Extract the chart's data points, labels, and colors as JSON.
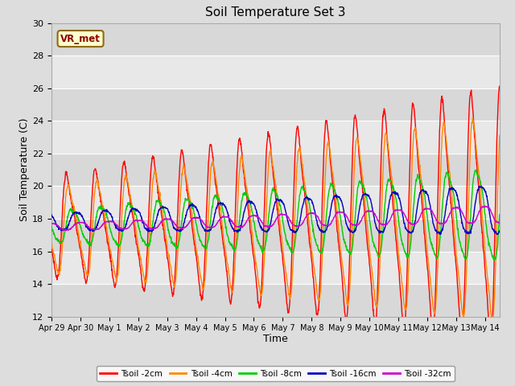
{
  "title": "Soil Temperature Set 3",
  "xlabel": "Time",
  "ylabel": "Soil Temperature (C)",
  "ylim": [
    12,
    30
  ],
  "yticks": [
    12,
    14,
    16,
    18,
    20,
    22,
    24,
    26,
    28,
    30
  ],
  "bg_color": "#dddddd",
  "plot_bg": "#e8e8e8",
  "stripe_light": "#e8e8e8",
  "stripe_dark": "#d0d0d0",
  "annotation_text": "VR_met",
  "annotation_bg": "#ffffcc",
  "annotation_border": "#8b6914",
  "series_colors": {
    "Tsoil -2cm": "#ff0000",
    "Tsoil -4cm": "#ff8800",
    "Tsoil -8cm": "#00cc00",
    "Tsoil -16cm": "#0000bb",
    "Tsoil -32cm": "#cc00cc"
  },
  "legend_labels": [
    "Tsoil -2cm",
    "Tsoil -4cm",
    "Tsoil -8cm",
    "Tsoil -16cm",
    "Tsoil -32cm"
  ],
  "x_tick_labels": [
    "Apr 29",
    "Apr 30",
    "May 1",
    "May 2",
    "May 3",
    "May 4",
    "May 5",
    "May 6",
    "May 7",
    "May 8",
    "May 9",
    "May 10",
    "May 11",
    "May 12",
    "May 13",
    "May 14"
  ],
  "num_days": 15.5,
  "pts_per_day": 96
}
